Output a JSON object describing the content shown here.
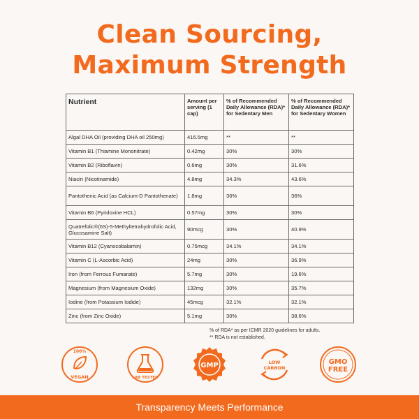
{
  "headline": {
    "line1": "Clean Sourcing,",
    "line2": "Maximum Strength"
  },
  "table": {
    "headers": {
      "nutrient": "Nutrient",
      "amount": "Amount per serving (1 cap)",
      "rda_men": "% of Recommended Daily Allowance (RDA)* for Sedentary Men",
      "rda_women": "% of Recommended Daily Allowance (RDA)* for Sedentary Women"
    },
    "rows": [
      {
        "nutrient": "Algal DHA Oil (providing DHA oil 250mg)",
        "amount": "416.5mg",
        "men": "**",
        "women": "**"
      },
      {
        "nutrient": "Vitamin B1 (Thiamine Mononitrate)",
        "amount": "0.42mg",
        "men": "30%",
        "women": "30%"
      },
      {
        "nutrient": "Vitamin B2 (Riboflavin)",
        "amount": "0.6mg",
        "men": "30%",
        "women": "31.6%"
      },
      {
        "nutrient": "Niacin (Nicotinamide)",
        "amount": "4.8mg",
        "men": "34.3%",
        "women": "43.6%"
      },
      {
        "nutrient": "Pantothenic Acid (as Calcium-D Pantothenate)",
        "amount": "1.8mg",
        "men": "36%",
        "women": "36%"
      },
      {
        "nutrient": "Vitamin B6 (Pyridoxine HCL)",
        "amount": "0.57mg",
        "men": "30%",
        "women": "30%"
      },
      {
        "nutrient": "Quatrefolic®(6S)-5-Methyltetrahydrofolic Acid, Glucosamine Salt)",
        "amount": "90mcg",
        "men": "30%",
        "women": "40.9%"
      },
      {
        "nutrient": "Vitamin B12 (Cyanocobalamin)",
        "amount": "0.75mcg",
        "men": "34.1%",
        "women": "34.1%"
      },
      {
        "nutrient": "Vitamin C (L-Ascorbic Acid)",
        "amount": "24mg",
        "men": "30%",
        "women": "36.9%"
      },
      {
        "nutrient": "Iron (from Ferrous Fumarate)",
        "amount": "5.7mg",
        "men": "30%",
        "women": "19.6%"
      },
      {
        "nutrient": "Magnesium (from Magnesium Oxide)",
        "amount": "132mg",
        "men": "30%",
        "women": "35.7%"
      },
      {
        "nutrient": "Iodine (from Potassium Iodide)",
        "amount": "45mcg",
        "men": "32.1%",
        "women": "32.1%"
      },
      {
        "nutrient": "Zinc (from Zinc Oxide)",
        "amount": "5.1mg",
        "men": "30%",
        "women": "38.6%"
      }
    ]
  },
  "footnotes": {
    "line1": "% of RDA* as per ICMR 2020 guidelines for adults.",
    "line2": "** RDA is not established."
  },
  "badges": {
    "vegan": {
      "top": "100%",
      "bottom": "VEGAN",
      "icon": "leaf-icon"
    },
    "lab": {
      "bottom": "LAB TESTED",
      "icon": "flask-icon"
    },
    "gmp": {
      "center": "GMP",
      "icon": "gmp-seal-icon"
    },
    "carbon": {
      "line1": "LOW",
      "line2": "CARBON",
      "icon": "low-carbon-icon"
    },
    "gmo": {
      "line1": "GMO",
      "line2": "FREE",
      "icon": "gmo-free-icon"
    }
  },
  "colors": {
    "accent": "#f26a1e",
    "background": "#fbf7f4",
    "text": "#2b2b2b"
  },
  "bottom_bar": {
    "text": "Transparency Meets Performance"
  }
}
